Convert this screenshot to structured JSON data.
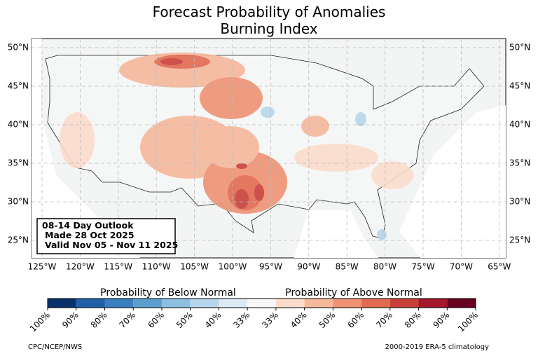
{
  "title": [
    "Forecast Probability of Anomalies",
    "Burning Index"
  ],
  "map": {
    "lat_ticks": [
      {
        "value": 25,
        "label": "25°N"
      },
      {
        "value": 30,
        "label": "30°N"
      },
      {
        "value": 35,
        "label": "35°N"
      },
      {
        "value": 40,
        "label": "40°N"
      },
      {
        "value": 45,
        "label": "45°N"
      },
      {
        "value": 50,
        "label": "50°N"
      }
    ],
    "lon_ticks": [
      {
        "value": -125,
        "label": "125°W"
      },
      {
        "value": -120,
        "label": "120°W"
      },
      {
        "value": -115,
        "label": "115°W"
      },
      {
        "value": -110,
        "label": "110°W"
      },
      {
        "value": -105,
        "label": "105°W"
      },
      {
        "value": -100,
        "label": "100°W"
      },
      {
        "value": -95,
        "label": "95°W"
      },
      {
        "value": -90,
        "label": "90°W"
      },
      {
        "value": -85,
        "label": "85°W"
      },
      {
        "value": -80,
        "label": "80°W"
      },
      {
        "value": -75,
        "label": "75°W"
      },
      {
        "value": -70,
        "label": "70°W"
      },
      {
        "value": -65,
        "label": "65°W"
      }
    ],
    "info_box": [
      "08-14 Day Outlook",
      "Made 28 Oct 2025",
      "Valid Nov 05 - Nov 11 2025"
    ]
  },
  "colorbar": {
    "below_label": "Probability of Below Normal",
    "above_label": "Probability of Above Normal",
    "colors": [
      "#08306b",
      "#1f5fa6",
      "#3a7fbf",
      "#5b9fd1",
      "#8cc0e0",
      "#b8d6ea",
      "#dde9f3",
      "#f7f7f7",
      "#fbdccb",
      "#f6b99c",
      "#ef9273",
      "#e26a50",
      "#c9403b",
      "#a5172a",
      "#67001f"
    ],
    "tick_labels": [
      "100%",
      "90%",
      "80%",
      "70%",
      "60%",
      "50%",
      "40%",
      "33%",
      "33%",
      "40%",
      "50%",
      "60%",
      "70%",
      "80%",
      "90%",
      "100%"
    ]
  },
  "footer": {
    "left": "CPC/NCEP/NWS",
    "right": "2000-2019 ERA-5 climatology"
  }
}
